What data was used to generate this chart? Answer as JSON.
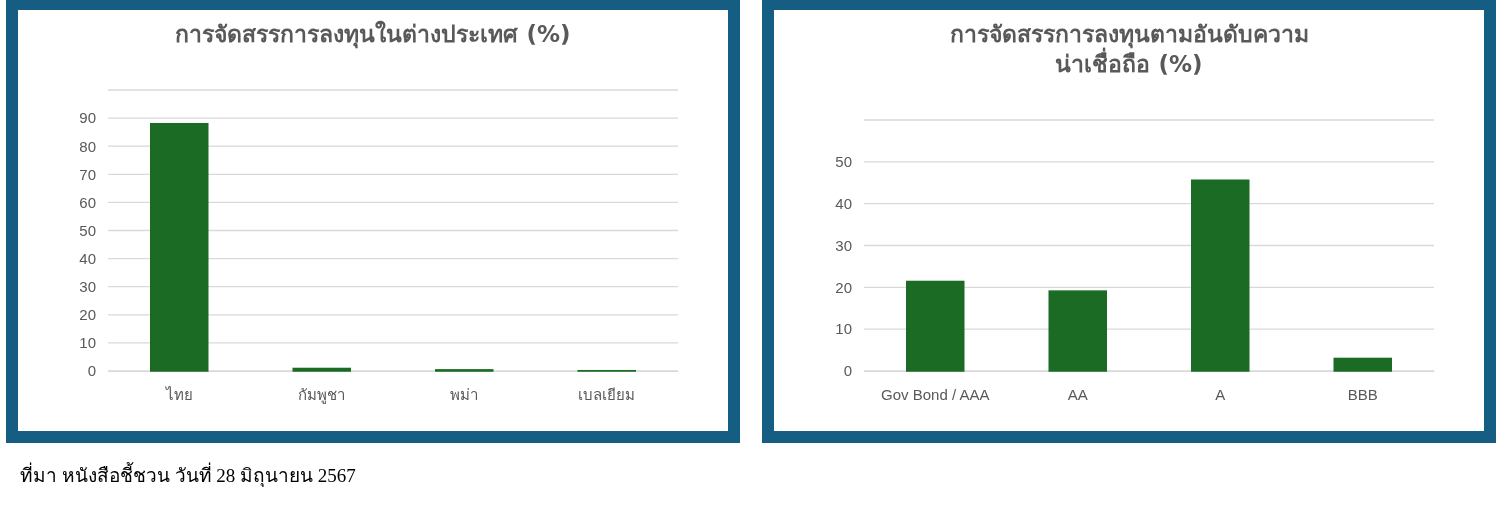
{
  "chart_data": [
    {
      "type": "bar",
      "title": "การจัดสรรการลงทุนในต่างประเทศ (%)",
      "categories": [
        "ไทย",
        "กัมพูชา",
        "พม่า",
        "เบลเยียม"
      ],
      "values": [
        88,
        0.9,
        0.4,
        0.1
      ],
      "color": "#1b6b25",
      "ylim": [
        0,
        100
      ],
      "yticks": [
        0,
        10,
        20,
        30,
        40,
        50,
        60,
        70,
        80,
        90,
        {
          "value": 100,
          "label": null
        }
      ],
      "grid": "y",
      "annotations": [
        "ที่มา หนังสือชี้ชวน วันที่ 28 มิถุนายน 2567"
      ]
    },
    {
      "type": "bar",
      "title": "การจัดสรรการลงทุนตามอันดับความน่าเชื่อถือ (%)",
      "categories": [
        "Gov Bond / AAA",
        "AA",
        "A",
        "BBB"
      ],
      "values": [
        21.4,
        19.1,
        45.6,
        3.0
      ],
      "color": "#1b6b25",
      "ylim": [
        0,
        60
      ],
      "yticks": [
        0,
        10,
        20,
        30,
        40,
        50,
        {
          "value": 60,
          "label": null
        }
      ],
      "grid": "y"
    }
  ]
}
